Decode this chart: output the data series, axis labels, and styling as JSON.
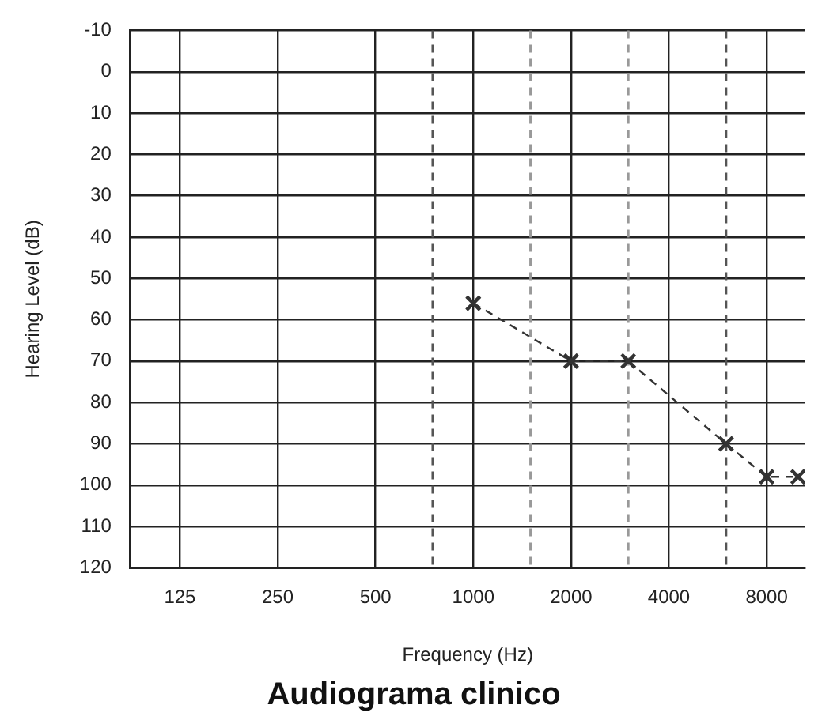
{
  "chart_data": {
    "type": "line",
    "title": "Audiograma clinico",
    "xlabel": "Frequency (Hz)",
    "ylabel": "Hearing Level (dB)",
    "x": [
      1000,
      2000,
      3000,
      6000,
      8000,
      10000
    ],
    "series": [
      {
        "color": "#333333",
        "values": [
          56,
          70,
          70,
          90,
          98,
          98
        ]
      }
    ],
    "log": "x",
    "xlim": [
      88,
      10500
    ],
    "xticks": [
      125,
      250,
      500,
      1000,
      2000,
      4000,
      8000
    ],
    "ylim": [
      120,
      -10
    ],
    "yticks": [
      -10,
      0,
      10,
      20,
      30,
      40,
      50,
      60,
      70,
      80,
      90,
      100,
      110,
      120
    ],
    "ref_lines": [
      {
        "axis": "x",
        "value": 750,
        "color": "#555555",
        "line_style": "dashed"
      },
      {
        "axis": "x",
        "value": 1500,
        "color": "#999999",
        "line_style": "dashed"
      },
      {
        "axis": "x",
        "value": 3000,
        "color": "#999999",
        "line_style": "dashed"
      },
      {
        "axis": "x",
        "value": 6000,
        "color": "#555555",
        "line_style": "dashed"
      }
    ],
    "grid": true,
    "legend": false,
    "marker": "cross",
    "line_style": "dashed"
  }
}
